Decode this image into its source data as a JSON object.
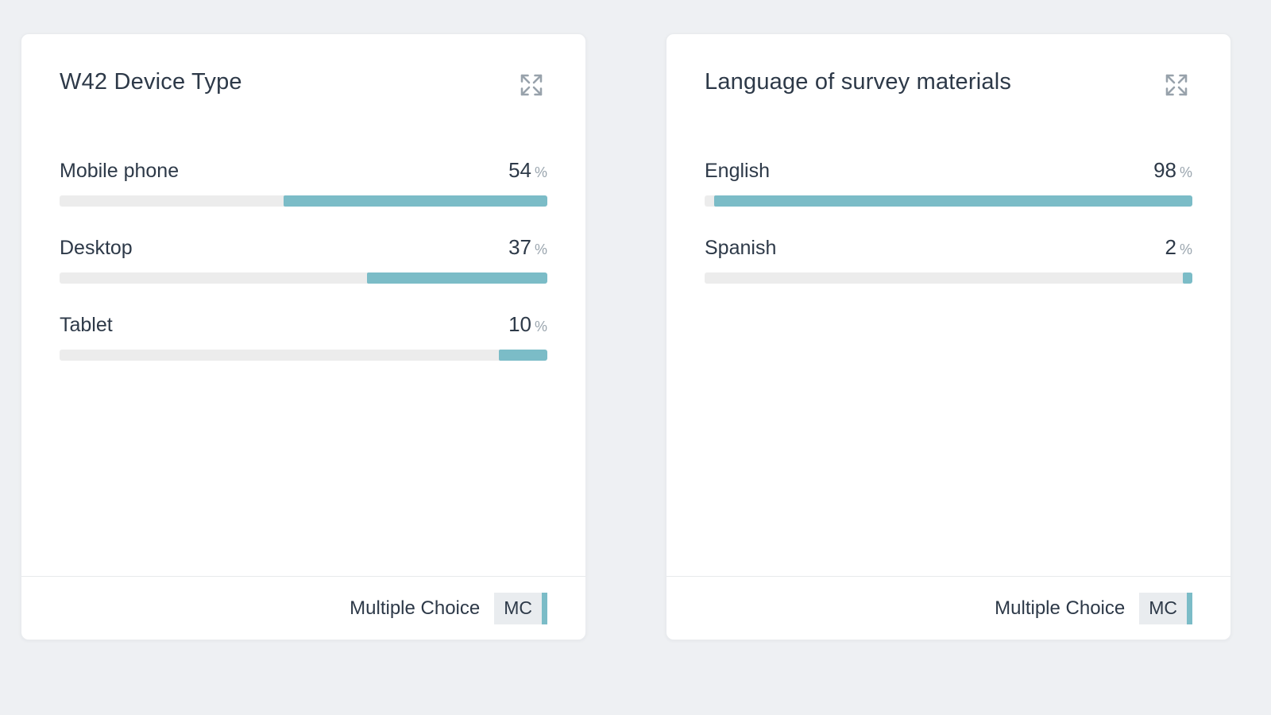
{
  "page": {
    "background": "#eef0f3",
    "accent_teal": "#7bbcc7",
    "track_gray": "#ececec"
  },
  "cards": [
    {
      "title": "W42 Device Type",
      "expand_icon": "expand-arrows-icon",
      "rows": [
        {
          "label": "Mobile phone",
          "value": "54",
          "unit": "%",
          "pct": 54
        },
        {
          "label": "Desktop",
          "value": "37",
          "unit": "%",
          "pct": 37
        },
        {
          "label": "Tablet",
          "value": "10",
          "unit": "%",
          "pct": 10
        }
      ],
      "footer": {
        "type_label": "Multiple Choice",
        "badge": "MC"
      }
    },
    {
      "title": "Language of survey materials",
      "expand_icon": "expand-arrows-icon",
      "rows": [
        {
          "label": "English",
          "value": "98",
          "unit": "%",
          "pct": 98
        },
        {
          "label": "Spanish",
          "value": "2",
          "unit": "%",
          "pct": 2
        }
      ],
      "footer": {
        "type_label": "Multiple Choice",
        "badge": "MC"
      }
    }
  ],
  "chart_data": [
    {
      "type": "bar",
      "title": "W42 Device Type",
      "categories": [
        "Mobile phone",
        "Desktop",
        "Tablet"
      ],
      "values": [
        54,
        37,
        10
      ],
      "unit": "%",
      "xlim": [
        0,
        100
      ],
      "orientation": "horizontal",
      "bar_fill_direction": "right-to-left",
      "question_type": "Multiple Choice"
    },
    {
      "type": "bar",
      "title": "Language of survey materials",
      "categories": [
        "English",
        "Spanish"
      ],
      "values": [
        98,
        2
      ],
      "unit": "%",
      "xlim": [
        0,
        100
      ],
      "orientation": "horizontal",
      "bar_fill_direction": "right-to-left",
      "question_type": "Multiple Choice"
    }
  ]
}
